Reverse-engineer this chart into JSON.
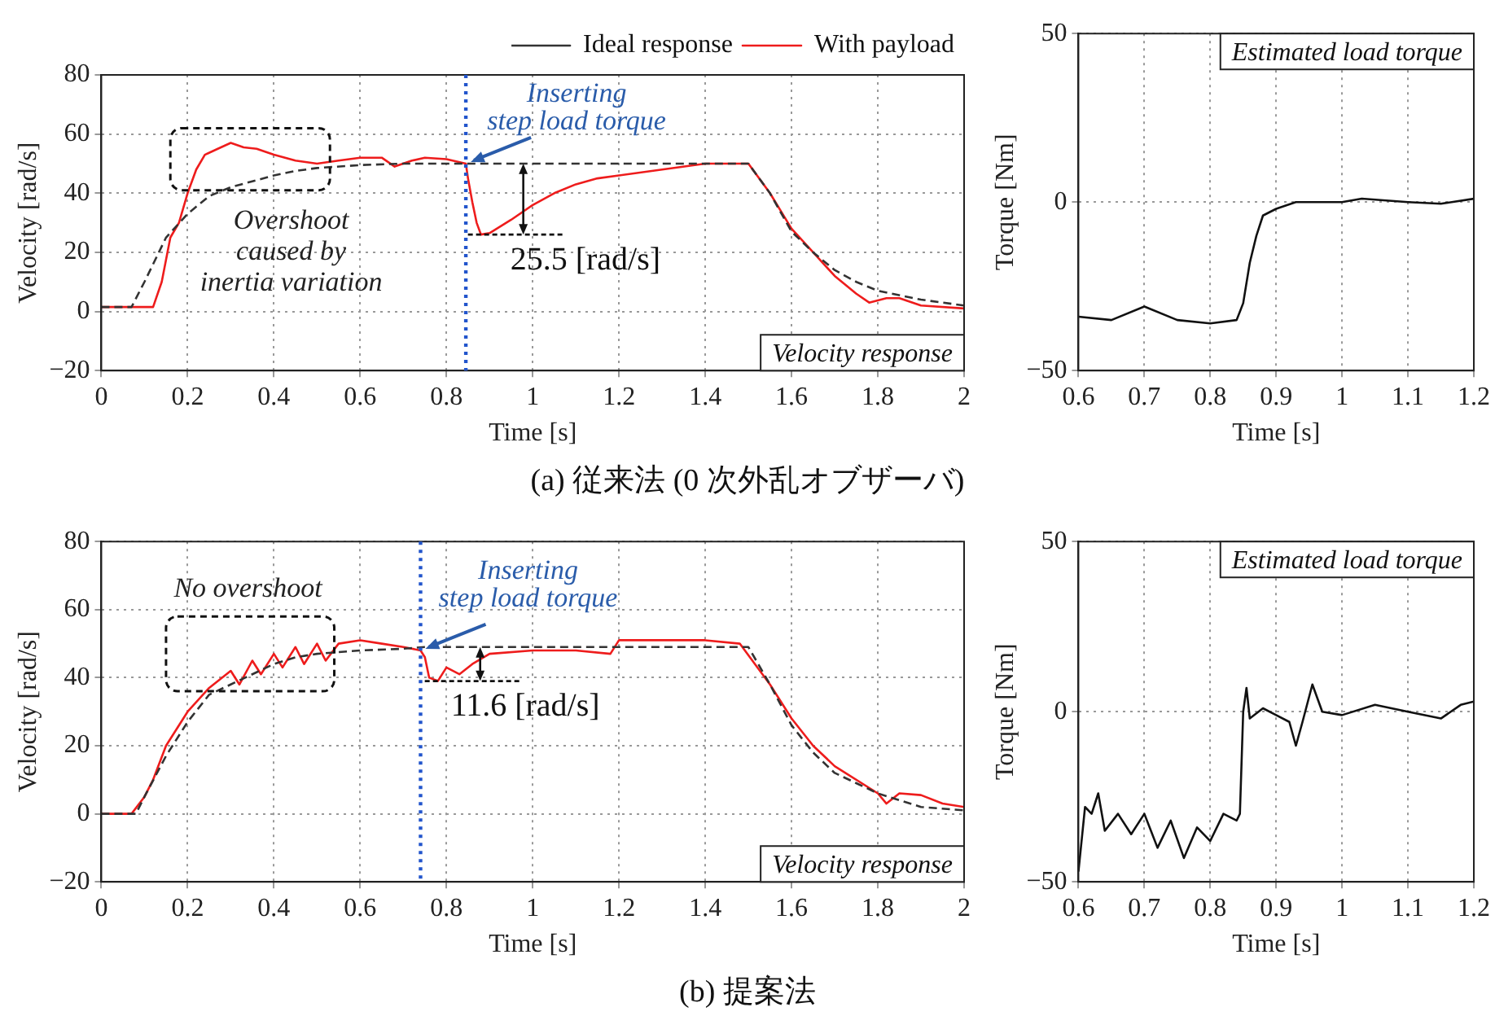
{
  "chart_data": [
    {
      "type": "line",
      "xlabel": "Time [s]",
      "ylabel": "Velocity [rad/s]",
      "xlim": [
        0,
        2
      ],
      "ylim": [
        -20,
        80
      ],
      "xticks": [
        0,
        0.2,
        0.4,
        0.6,
        0.8,
        1,
        1.2,
        1.4,
        1.6,
        1.8,
        2
      ],
      "yticks": [
        -20,
        0,
        20,
        40,
        60,
        80
      ],
      "grid": true,
      "legend": "top right",
      "marker": "none",
      "series": [
        {
          "name": "Ideal response",
          "color": "#333333",
          "line_style": "dashed",
          "x": [
            0,
            0.07,
            0.1,
            0.15,
            0.2,
            0.25,
            0.3,
            0.35,
            0.4,
            0.45,
            0.5,
            0.6,
            0.7,
            0.85,
            1.5,
            1.55,
            1.6,
            1.65,
            1.7,
            1.75,
            1.8,
            1.9,
            2
          ],
          "values": [
            1.5,
            1.5,
            10,
            25,
            33,
            39,
            42,
            44,
            46,
            47.5,
            48.5,
            49.5,
            50,
            50,
            50,
            40,
            27,
            20,
            14,
            10,
            7,
            4,
            2
          ]
        },
        {
          "name": "With payload",
          "color": "#ee1c1c",
          "line_style": "solid",
          "x": [
            0,
            0.12,
            0.14,
            0.16,
            0.18,
            0.2,
            0.22,
            0.24,
            0.27,
            0.3,
            0.33,
            0.36,
            0.4,
            0.45,
            0.5,
            0.55,
            0.6,
            0.65,
            0.68,
            0.72,
            0.75,
            0.8,
            0.845,
            0.85,
            0.86,
            0.87,
            0.88,
            0.9,
            0.95,
            1,
            1.05,
            1.1,
            1.15,
            1.2,
            1.3,
            1.4,
            1.5,
            1.55,
            1.6,
            1.65,
            1.7,
            1.75,
            1.78,
            1.82,
            1.85,
            1.9,
            2
          ],
          "values": [
            1.5,
            1.5,
            10,
            25,
            30,
            40,
            48,
            53,
            55,
            57,
            55.5,
            55,
            53,
            51,
            50,
            51,
            52,
            52,
            49,
            51,
            52,
            51.5,
            50,
            45,
            37,
            30,
            26,
            26.5,
            31,
            36,
            40,
            43,
            45,
            46,
            48,
            50,
            50,
            40,
            28,
            20,
            12,
            6,
            3,
            4.5,
            4.5,
            2,
            1
          ]
        }
      ],
      "ref_lines": [
        {
          "axis": "x",
          "value": 0.845,
          "color": "#2255cc",
          "line_style": "dotted"
        }
      ],
      "annotations": [
        {
          "text": "Inserting step load torque",
          "x": 0.845,
          "y": 50
        },
        "Overshoot caused by inertia variation",
        {
          "text": "25.5 [rad/s]",
          "x": 0.88,
          "y": 26
        },
        "Velocity response",
        "(a) 従来法 (0 次外乱オブザーバ)"
      ]
    },
    {
      "type": "line",
      "xlabel": "Time [s]",
      "ylabel": "Torque [Nm]",
      "xlim": [
        0.6,
        1.2
      ],
      "ylim": [
        -50,
        50
      ],
      "xticks": [
        0.6,
        0.7,
        0.8,
        0.9,
        1,
        1.1,
        1.2
      ],
      "yticks": [
        -50,
        0,
        50
      ],
      "grid": true,
      "marker": "none",
      "series": [
        {
          "color": "#111111",
          "line_style": "solid",
          "x": [
            0.6,
            0.65,
            0.7,
            0.75,
            0.8,
            0.84,
            0.85,
            0.86,
            0.87,
            0.88,
            0.9,
            0.93,
            1,
            1.03,
            1.1,
            1.15,
            1.2
          ],
          "values": [
            -34,
            -35,
            -31,
            -35,
            -36,
            -35,
            -30,
            -18,
            -10,
            -4,
            -2,
            0,
            0,
            1,
            0,
            -0.5,
            1
          ]
        }
      ],
      "annotations": [
        "Estimated load torque"
      ]
    },
    {
      "type": "line",
      "xlabel": "Time [s]",
      "ylabel": "Velocity [rad/s]",
      "xlim": [
        0,
        2
      ],
      "ylim": [
        -20,
        80
      ],
      "xticks": [
        0,
        0.2,
        0.4,
        0.6,
        0.8,
        1,
        1.2,
        1.4,
        1.6,
        1.8,
        2
      ],
      "yticks": [
        -20,
        0,
        20,
        40,
        60,
        80
      ],
      "grid": true,
      "marker": "none",
      "series": [
        {
          "color": "#333333",
          "line_style": "dashed",
          "x": [
            0,
            0.08,
            0.1,
            0.15,
            0.2,
            0.25,
            0.3,
            0.35,
            0.4,
            0.45,
            0.5,
            0.6,
            0.7,
            0.75,
            1.5,
            1.55,
            1.6,
            1.65,
            1.7,
            1.75,
            1.8,
            1.9,
            2
          ],
          "values": [
            0,
            0,
            5,
            17,
            27,
            35,
            38,
            41,
            44,
            46,
            47,
            48,
            48.5,
            49,
            49,
            38,
            26,
            18,
            12,
            9,
            6,
            2,
            1
          ]
        },
        {
          "color": "#ee1c1c",
          "line_style": "solid",
          "x": [
            0,
            0.07,
            0.1,
            0.12,
            0.15,
            0.2,
            0.25,
            0.3,
            0.32,
            0.35,
            0.37,
            0.4,
            0.42,
            0.45,
            0.47,
            0.5,
            0.52,
            0.55,
            0.6,
            0.65,
            0.7,
            0.74,
            0.75,
            0.76,
            0.78,
            0.8,
            0.83,
            0.86,
            0.9,
            1,
            1.1,
            1.18,
            1.2,
            1.3,
            1.4,
            1.48,
            1.55,
            1.6,
            1.65,
            1.7,
            1.8,
            1.82,
            1.85,
            1.9,
            1.95,
            2
          ],
          "values": [
            0,
            0,
            5,
            10,
            20,
            30,
            37,
            42,
            38,
            45,
            41,
            47,
            43,
            49,
            44,
            50,
            45,
            50,
            51,
            50,
            49,
            48,
            46,
            40,
            39,
            43,
            41,
            44,
            47,
            48,
            48,
            47,
            51,
            51,
            51,
            50,
            38,
            28,
            20,
            14,
            6,
            3,
            6,
            5.5,
            3,
            2
          ]
        }
      ],
      "ref_lines": [
        {
          "axis": "x",
          "value": 0.74,
          "color": "#2255cc",
          "line_style": "dotted"
        }
      ],
      "annotations": [
        {
          "text": "Inserting step load torque",
          "x": 0.74,
          "y": 48
        },
        "No overshoot",
        {
          "text": "11.6 [rad/s]",
          "x": 0.78,
          "y": 39
        },
        "Velocity response",
        "(b) 提案法"
      ]
    },
    {
      "type": "line",
      "xlabel": "Time [s]",
      "ylabel": "Torque [Nm]",
      "xlim": [
        0.6,
        1.2
      ],
      "ylim": [
        -50,
        50
      ],
      "xticks": [
        0.6,
        0.7,
        0.8,
        0.9,
        1,
        1.1,
        1.2
      ],
      "yticks": [
        -50,
        0,
        50
      ],
      "grid": true,
      "marker": "none",
      "series": [
        {
          "color": "#111111",
          "line_style": "solid",
          "x": [
            0.6,
            0.61,
            0.62,
            0.63,
            0.64,
            0.66,
            0.68,
            0.7,
            0.72,
            0.74,
            0.76,
            0.78,
            0.8,
            0.82,
            0.84,
            0.845,
            0.85,
            0.855,
            0.86,
            0.88,
            0.9,
            0.92,
            0.93,
            0.94,
            0.955,
            0.97,
            1,
            1.05,
            1.1,
            1.15,
            1.18,
            1.2
          ],
          "values": [
            -47,
            -28,
            -30,
            -24,
            -35,
            -30,
            -36,
            -30,
            -40,
            -32,
            -43,
            -34,
            -38,
            -30,
            -32,
            -30,
            0,
            7,
            -2,
            1,
            -1,
            -3,
            -10,
            -3,
            8,
            0,
            -1,
            2,
            0,
            -2,
            2,
            3
          ]
        }
      ],
      "annotations": [
        "Estimated load torque"
      ]
    }
  ]
}
